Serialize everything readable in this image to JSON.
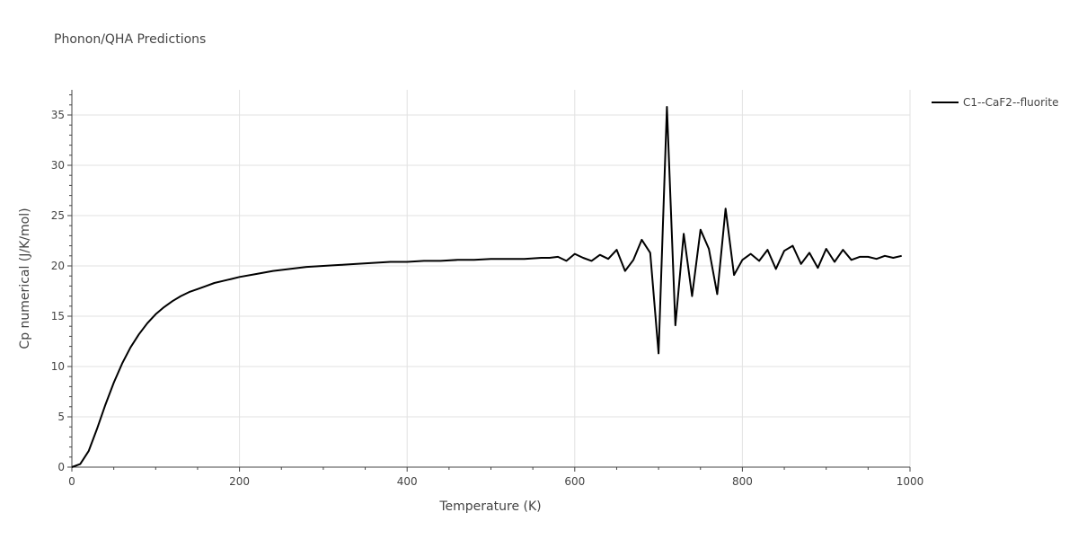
{
  "title": "Phonon/QHA Predictions",
  "chart_data": {
    "type": "line",
    "xlabel": "Temperature (K)",
    "ylabel": "Cp numerical (J/K/mol)",
    "xlim": [
      0,
      1000
    ],
    "ylim": [
      0,
      37.5
    ],
    "xticks": [
      0,
      200,
      400,
      600,
      800,
      1000
    ],
    "yticks": [
      0,
      5,
      10,
      15,
      20,
      25,
      30,
      35
    ],
    "grid": true,
    "legend_position": "top-right",
    "series": [
      {
        "name": "C1--CaF2--fluorite",
        "color": "#000000",
        "x": [
          0,
          10,
          20,
          30,
          40,
          50,
          60,
          70,
          80,
          90,
          100,
          110,
          120,
          130,
          140,
          150,
          160,
          170,
          180,
          190,
          200,
          220,
          240,
          260,
          280,
          300,
          320,
          340,
          360,
          380,
          400,
          420,
          440,
          460,
          480,
          500,
          520,
          540,
          560,
          570,
          580,
          590,
          600,
          610,
          620,
          630,
          640,
          650,
          660,
          670,
          680,
          690,
          700,
          710,
          720,
          730,
          740,
          750,
          760,
          770,
          780,
          790,
          800,
          810,
          820,
          830,
          840,
          850,
          860,
          870,
          880,
          890,
          900,
          910,
          920,
          930,
          940,
          950,
          960,
          970,
          980,
          990
        ],
        "y": [
          0.0,
          0.3,
          1.6,
          3.8,
          6.2,
          8.4,
          10.3,
          11.9,
          13.2,
          14.3,
          15.2,
          15.9,
          16.5,
          17.0,
          17.4,
          17.7,
          18.0,
          18.3,
          18.5,
          18.7,
          18.9,
          19.2,
          19.5,
          19.7,
          19.9,
          20.0,
          20.1,
          20.2,
          20.3,
          20.4,
          20.4,
          20.5,
          20.5,
          20.6,
          20.6,
          20.7,
          20.7,
          20.7,
          20.8,
          20.8,
          20.9,
          20.5,
          21.2,
          20.8,
          20.5,
          21.1,
          20.7,
          21.6,
          19.5,
          20.6,
          22.6,
          21.3,
          11.3,
          35.8,
          14.1,
          23.2,
          17.0,
          23.6,
          21.7,
          17.2,
          25.7,
          19.1,
          20.6,
          21.2,
          20.5,
          21.6,
          19.7,
          21.5,
          22.0,
          20.2,
          21.3,
          19.8,
          21.7,
          20.4,
          21.6,
          20.6,
          20.9,
          20.9,
          20.7,
          21.0,
          20.8,
          21.0
        ]
      }
    ]
  }
}
